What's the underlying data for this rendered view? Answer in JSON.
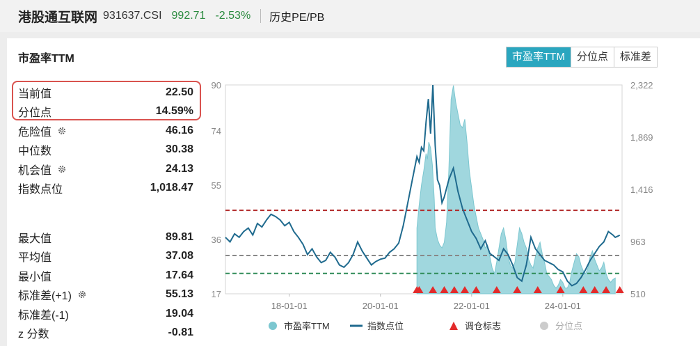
{
  "header": {
    "name": "港股通互联网",
    "code": "931637.CSI",
    "price": "992.71",
    "change": "-2.53%",
    "page": "历史PE/PB"
  },
  "card": {
    "title": "市盈率TTM",
    "tabs": [
      {
        "label": "市盈率TTM",
        "active": true
      },
      {
        "label": "分位点",
        "active": false
      },
      {
        "label": "标准差",
        "active": false
      }
    ]
  },
  "stats": {
    "top": [
      {
        "label": "当前值",
        "value": "22.50"
      },
      {
        "label": "分位点",
        "value": "14.59%"
      },
      {
        "label": "危险值",
        "value": "46.16",
        "icon": "gear-icon"
      },
      {
        "label": "中位数",
        "value": "30.38"
      },
      {
        "label": "机会值",
        "value": "24.13",
        "icon": "gear-icon"
      },
      {
        "label": "指数点位",
        "value": "1,018.47"
      }
    ],
    "bottom": [
      {
        "label": "最大值",
        "value": "89.81"
      },
      {
        "label": "平均值",
        "value": "37.08"
      },
      {
        "label": "最小值",
        "value": "17.64"
      },
      {
        "label": "标准差(+1)",
        "value": "55.13",
        "icon": "gear-icon"
      },
      {
        "label": "标准差(-1)",
        "value": "19.04"
      },
      {
        "label": "z 分数",
        "value": "-0.81"
      }
    ]
  },
  "colors": {
    "pe_fill": "#8fd0d8",
    "index_line": "#1f6a8e",
    "danger": "#b22a2a",
    "median": "#888888",
    "opportunity": "#2e8b57",
    "marker": "#e32b2b",
    "tab_active": "#2aa6bf"
  },
  "chart_data": {
    "type": "area",
    "x_ticks": [
      "18-01-01",
      "20-01-01",
      "22-01-01",
      "24-01-01"
    ],
    "x_range": [
      2016.6,
      2025.3
    ],
    "y_left": {
      "ticks": [
        "90",
        "74",
        "55",
        "36",
        "17"
      ],
      "range": [
        17,
        90
      ]
    },
    "y_right": {
      "ticks": [
        "2,322",
        "1,869",
        "1,416",
        "963",
        "510"
      ],
      "range": [
        510,
        2322
      ]
    },
    "reference_lines": {
      "danger": 46.16,
      "median": 30.38,
      "opportunity": 24.13
    },
    "legend": [
      "市盈率TTM",
      "指数点位",
      "调仓标志",
      "分位点"
    ],
    "series": [
      {
        "name": "市盈率TTM",
        "axis": "left",
        "x": [
          2020.8,
          2020.85,
          2020.9,
          2020.95,
          2021.0,
          2021.03,
          2021.06,
          2021.1,
          2021.14,
          2021.18,
          2021.2,
          2021.25,
          2021.3,
          2021.35,
          2021.4,
          2021.45,
          2021.5,
          2021.55,
          2021.6,
          2021.65,
          2021.7,
          2021.75,
          2021.8,
          2021.85,
          2021.9,
          2021.95,
          2022.0,
          2022.05,
          2022.1,
          2022.15,
          2022.2,
          2022.25,
          2022.3,
          2022.35,
          2022.4,
          2022.45,
          2022.5,
          2022.55,
          2022.6,
          2022.65,
          2022.7,
          2022.75,
          2022.8,
          2022.85,
          2022.9,
          2022.95,
          2023.0,
          2023.05,
          2023.1,
          2023.15,
          2023.2,
          2023.25,
          2023.3,
          2023.35,
          2023.4,
          2023.45,
          2023.5,
          2023.55,
          2023.6,
          2023.65,
          2023.7,
          2023.75,
          2023.8,
          2023.85,
          2023.9,
          2023.95,
          2024.0,
          2024.05,
          2024.1,
          2024.15,
          2024.2,
          2024.25,
          2024.3,
          2024.35,
          2024.4,
          2024.45,
          2024.5,
          2024.55,
          2024.6,
          2024.65,
          2024.7,
          2024.75,
          2024.8,
          2024.85,
          2024.9,
          2024.95,
          2025.0,
          2025.05,
          2025.1,
          2025.15
        ],
        "values": [
          40,
          48,
          55,
          60,
          66,
          64,
          70,
          68,
          62,
          50,
          40,
          36,
          34,
          33,
          35,
          42,
          60,
          85,
          89.8,
          84,
          80,
          76,
          75,
          78,
          70,
          60,
          54,
          48,
          44,
          40,
          38,
          36,
          33,
          34,
          30,
          26,
          24,
          28,
          33,
          38,
          40,
          36,
          30,
          27,
          26,
          28,
          34,
          40,
          38,
          35,
          33,
          29,
          27,
          26,
          30,
          33,
          35,
          31,
          28,
          24,
          23,
          22,
          20,
          19,
          20,
          22,
          21,
          19,
          19,
          21,
          25,
          28,
          31,
          30,
          27,
          25,
          24,
          26,
          30,
          32,
          29,
          27,
          25,
          26,
          28,
          24,
          22,
          21,
          22,
          22.5
        ]
      },
      {
        "name": "指数点位",
        "axis": "right",
        "x": [
          2016.6,
          2016.7,
          2016.8,
          2016.9,
          2017.0,
          2017.1,
          2017.2,
          2017.3,
          2017.4,
          2017.5,
          2017.6,
          2017.7,
          2017.8,
          2017.9,
          2018.0,
          2018.1,
          2018.2,
          2018.3,
          2018.4,
          2018.5,
          2018.6,
          2018.7,
          2018.8,
          2018.9,
          2019.0,
          2019.1,
          2019.2,
          2019.3,
          2019.4,
          2019.5,
          2019.6,
          2019.7,
          2019.8,
          2019.9,
          2020.0,
          2020.1,
          2020.2,
          2020.3,
          2020.4,
          2020.5,
          2020.6,
          2020.7,
          2020.8,
          2020.85,
          2020.9,
          2020.95,
          2021.0,
          2021.05,
          2021.1,
          2021.15,
          2021.2,
          2021.25,
          2021.3,
          2021.35,
          2021.4,
          2021.5,
          2021.6,
          2021.7,
          2021.8,
          2021.9,
          2022.0,
          2022.1,
          2022.2,
          2022.3,
          2022.4,
          2022.5,
          2022.6,
          2022.7,
          2022.8,
          2022.9,
          2023.0,
          2023.1,
          2023.2,
          2023.3,
          2023.4,
          2023.5,
          2023.6,
          2023.7,
          2023.8,
          2023.9,
          2024.0,
          2024.1,
          2024.2,
          2024.3,
          2024.4,
          2024.5,
          2024.6,
          2024.7,
          2024.8,
          2024.9,
          2025.0,
          2025.1,
          2025.15,
          2025.25
        ],
        "values": [
          1000,
          960,
          1030,
          1000,
          1050,
          1080,
          1020,
          1120,
          1090,
          1150,
          1200,
          1180,
          1150,
          1100,
          1130,
          1050,
          1000,
          940,
          850,
          900,
          830,
          780,
          800,
          870,
          830,
          760,
          740,
          780,
          850,
          960,
          880,
          820,
          760,
          790,
          810,
          820,
          870,
          900,
          950,
          1100,
          1300,
          1500,
          1700,
          1650,
          1780,
          1750,
          2000,
          2200,
          1900,
          2322,
          1800,
          1500,
          1450,
          1300,
          1350,
          1500,
          1600,
          1400,
          1250,
          1150,
          1050,
          990,
          900,
          970,
          860,
          830,
          800,
          900,
          850,
          760,
          650,
          620,
          760,
          1000,
          900,
          850,
          800,
          780,
          760,
          720,
          700,
          620,
          580,
          600,
          650,
          720,
          800,
          860,
          920,
          960,
          1050,
          1020,
          1000,
          1018
        ]
      },
      {
        "name": "调仓标志",
        "axis": "left",
        "x": [
          2020.8,
          2020.85,
          2021.15,
          2021.4,
          2021.62,
          2021.85,
          2022.1,
          2022.55,
          2023.0,
          2023.45,
          2023.95,
          2024.45,
          2024.7,
          2024.95,
          2025.25
        ],
        "values": [
          17,
          17,
          17,
          17,
          17,
          17,
          17,
          17,
          17,
          17,
          17,
          17,
          17,
          17,
          17
        ]
      }
    ]
  }
}
